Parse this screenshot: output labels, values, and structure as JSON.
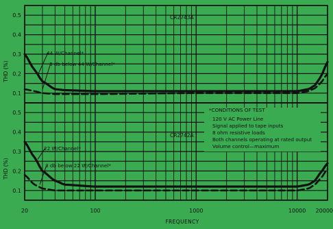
{
  "colors": {
    "background": "#3bab52",
    "grid": "#111111",
    "curve": "#111111"
  },
  "chart_data": [
    {
      "type": "line",
      "title": "CR2743A",
      "ylabel": "THD (%)",
      "xlabel": "FREQUENCY",
      "x_scale": "log",
      "xlim": [
        20,
        20000
      ],
      "ylim": [
        0.05,
        0.55
      ],
      "y_ticks": [
        "0.1",
        "0.2",
        "0.3",
        "0.4",
        "0.5"
      ],
      "grid": true,
      "series": [
        {
          "name": "44 W/Channel*",
          "style": "solid",
          "x": [
            20,
            25,
            30,
            40,
            50,
            100,
            1000,
            10000,
            13000,
            15000,
            17000,
            20000
          ],
          "y": [
            0.3,
            0.22,
            0.16,
            0.12,
            0.115,
            0.11,
            0.11,
            0.11,
            0.12,
            0.14,
            0.18,
            0.26
          ]
        },
        {
          "name": "3 db below 44 W/Channel*",
          "style": "dashed",
          "x": [
            20,
            25,
            30,
            40,
            100,
            1000,
            10000,
            13000,
            15000,
            17000,
            20000
          ],
          "y": [
            0.12,
            0.11,
            0.1,
            0.095,
            0.095,
            0.1,
            0.1,
            0.11,
            0.125,
            0.15,
            0.2
          ]
        }
      ]
    },
    {
      "type": "line",
      "title": "CR2742A",
      "ylabel": "THD (%)",
      "xlabel": "FREQUENCY",
      "x_scale": "log",
      "xlim": [
        20,
        20000
      ],
      "ylim": [
        0.05,
        0.55
      ],
      "y_ticks": [
        "0.1",
        "0.2",
        "0.3",
        "0.4",
        "0.5"
      ],
      "x_ticks": [
        "20",
        "100",
        "1000",
        "10000",
        "20000"
      ],
      "grid": true,
      "series": [
        {
          "name": "22 W/Channel*",
          "style": "solid",
          "x": [
            20,
            25,
            30,
            40,
            50,
            100,
            1000,
            10000,
            13000,
            15000,
            17000,
            20000
          ],
          "y": [
            0.35,
            0.27,
            0.2,
            0.15,
            0.13,
            0.12,
            0.12,
            0.12,
            0.13,
            0.15,
            0.19,
            0.24
          ]
        },
        {
          "name": "3 db below 22 W/Channel*",
          "style": "dashed",
          "x": [
            20,
            25,
            30,
            40,
            100,
            1000,
            10000,
            13000,
            15000,
            17000,
            20000
          ],
          "y": [
            0.18,
            0.13,
            0.11,
            0.1,
            0.1,
            0.1,
            0.1,
            0.11,
            0.13,
            0.16,
            0.21
          ]
        }
      ]
    }
  ],
  "conditions": {
    "heading": "*CONDITIONS OF TEST",
    "lines": [
      "120 V AC Power Line",
      "Signal applied to tape inputs",
      "8 ohm resistive loads",
      "Both channels operating at rated output",
      "Volume control—maximum"
    ]
  }
}
